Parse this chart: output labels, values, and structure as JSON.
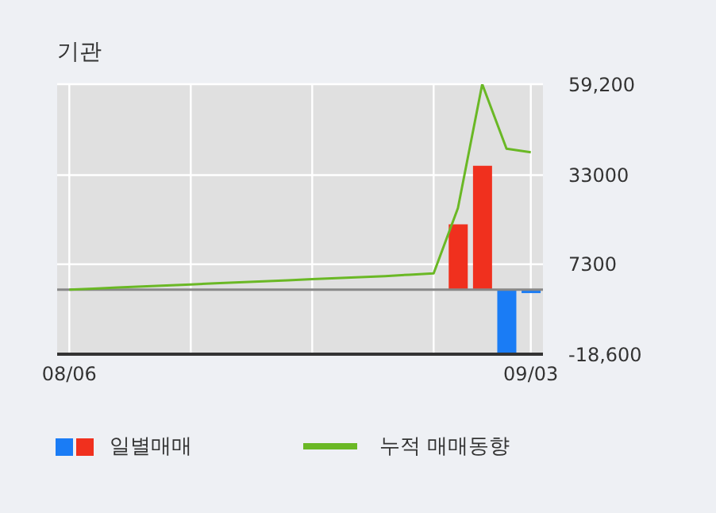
{
  "chart_data": {
    "type": "bar",
    "title": "기관",
    "categories": [
      "08/06",
      null,
      null,
      null,
      null,
      null,
      null,
      null,
      null,
      null,
      null,
      null,
      null,
      null,
      null,
      null,
      null,
      null,
      null,
      "09/03"
    ],
    "series": [
      {
        "name": "일별매매",
        "colors": [
          "#f0301e",
          "#f0301e",
          "#f0301e",
          "#f0301e",
          "#f0301e",
          "#f0301e",
          "#f0301e",
          "#f0301e",
          "#f0301e",
          "#f0301e",
          "#f0301e",
          "#f0301e",
          "#f0301e",
          "#f0301e",
          "#f0301e",
          "#f0301e",
          "#f0301e",
          "#f0301e",
          "#1a7cf5",
          "#1a7cf5"
        ],
        "values": [
          null,
          null,
          null,
          null,
          null,
          null,
          null,
          null,
          null,
          null,
          null,
          null,
          null,
          null,
          null,
          null,
          18800,
          35700,
          -18600,
          -1000
        ]
      },
      {
        "name": "누적 매매동향",
        "type": "line",
        "color": "#6ab825",
        "values": [
          0,
          300,
          600,
          900,
          1200,
          1500,
          1800,
          2100,
          2400,
          2700,
          3000,
          3300,
          3600,
          3900,
          4300,
          4700,
          23500,
          59200,
          40600,
          39600
        ]
      }
    ],
    "ylim": [
      -18600,
      59200
    ],
    "yticks": [
      {
        "value": 59200,
        "label": "59,200"
      },
      33000,
      7300,
      {
        "value": -18600,
        "label": "-18,600"
      }
    ],
    "ref_lines": [
      {
        "axis": "y",
        "value": 0,
        "color": "#888888"
      }
    ],
    "grid": true,
    "legend": "bottom",
    "marker": "none",
    "line_style": "solid"
  }
}
